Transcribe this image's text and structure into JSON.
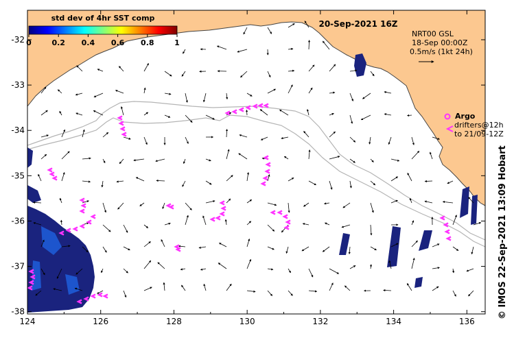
{
  "header": {
    "colorbar_title": "std dev of 4hr SST comp",
    "date_title": "20-Sep-2021 16Z",
    "colorbar_ticks": [
      "0",
      "0.2",
      "0.4",
      "0.6",
      "0.8",
      "1"
    ],
    "colorbar_colors": [
      "#00007f",
      "#0000ff",
      "#007fff",
      "#00ffff",
      "#7fff7f",
      "#ffff00",
      "#ff7f00",
      "#ff0000",
      "#7f0000"
    ]
  },
  "legend": {
    "model_line1": "NRT00 GSL",
    "model_line2": "18-Sep 00:00Z",
    "scale_text": "0.5m/s (1kt 24h)",
    "argo_label": "Argo",
    "drifters_line1": "drifters@12h",
    "drifters_line2": "to 21/09-12Z",
    "argo_color": "#ff33ff"
  },
  "axes": {
    "lon_ticks": [
      "124",
      "126",
      "128",
      "130",
      "132",
      "134",
      "136"
    ],
    "lat_ticks": [
      "-32",
      "-33",
      "-34",
      "-35",
      "-36",
      "-37",
      "-38"
    ],
    "lon_range": [
      124,
      136.5
    ],
    "lat_range": [
      -38.05,
      -31.35
    ]
  },
  "credit": "© IMOS 22-Sep-2021 13:09 Hobart",
  "colors": {
    "land": "#fcc890",
    "coast": "#444444",
    "isobath": "#b4b4b4",
    "sst_dark": "#1a237e",
    "sst_mid": "#1e5bd6"
  }
}
